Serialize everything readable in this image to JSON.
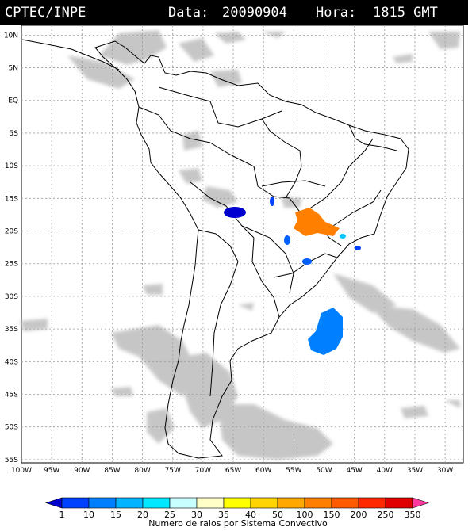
{
  "header": {
    "source": "CPTEC/INPE",
    "date_label": "Data:",
    "date_value": "20090904",
    "hour_label": "Hora:",
    "hour_value": "1815 GMT"
  },
  "axes": {
    "lat_labels": [
      "10N",
      "5N",
      "EQ",
      "5S",
      "10S",
      "15S",
      "20S",
      "25S",
      "30S",
      "35S",
      "40S",
      "45S",
      "50S",
      "55S"
    ],
    "lon_labels": [
      "100W",
      "95W",
      "90W",
      "85W",
      "80W",
      "75W",
      "70W",
      "65W",
      "60W",
      "55W",
      "50W",
      "45W",
      "40W",
      "35W",
      "30W"
    ],
    "lat_range": [
      11.5,
      -55.5
    ],
    "lon_range": [
      -100,
      -27
    ],
    "grid": true
  },
  "legend": {
    "ticks": [
      "1",
      "10",
      "15",
      "20",
      "25",
      "30",
      "35",
      "40",
      "50",
      "100",
      "150",
      "200",
      "250",
      "350"
    ],
    "colors": [
      "#0000d0",
      "#0040ff",
      "#0080ff",
      "#00b4ff",
      "#00e8ff",
      "#c8ffff",
      "#ffffc8",
      "#ffff00",
      "#ffd400",
      "#ffa800",
      "#ff8000",
      "#ff5a00",
      "#ff2800",
      "#e00000",
      "#ff3aa0"
    ],
    "caption": "Numero de raios por Sistema Convectivo"
  },
  "cells": [
    {
      "lon": -64,
      "lat": -17.2,
      "color": "#0000d0"
    },
    {
      "lon": -62,
      "lat": -16.3,
      "color": "#0040ff"
    },
    {
      "lon": -61.6,
      "lat": -16.8,
      "color": "#0040ff"
    },
    {
      "lon": -48.5,
      "lat": -18.5,
      "color": "#ff8000"
    },
    {
      "lon": -52.3,
      "lat": -20.5,
      "color": "#0060ff"
    },
    {
      "lon": -53.5,
      "lat": -24.3,
      "color": "#0060ff"
    },
    {
      "lon": -56.5,
      "lat": -21.8,
      "color": "#0040ff"
    },
    {
      "lon": -43,
      "lat": -22.2,
      "color": "#0040ff"
    },
    {
      "lon": -45.5,
      "lat": -20.6,
      "color": "#00c8ff"
    },
    {
      "lon": -48.5,
      "lat": -36.5,
      "color": "#0080ff"
    }
  ]
}
